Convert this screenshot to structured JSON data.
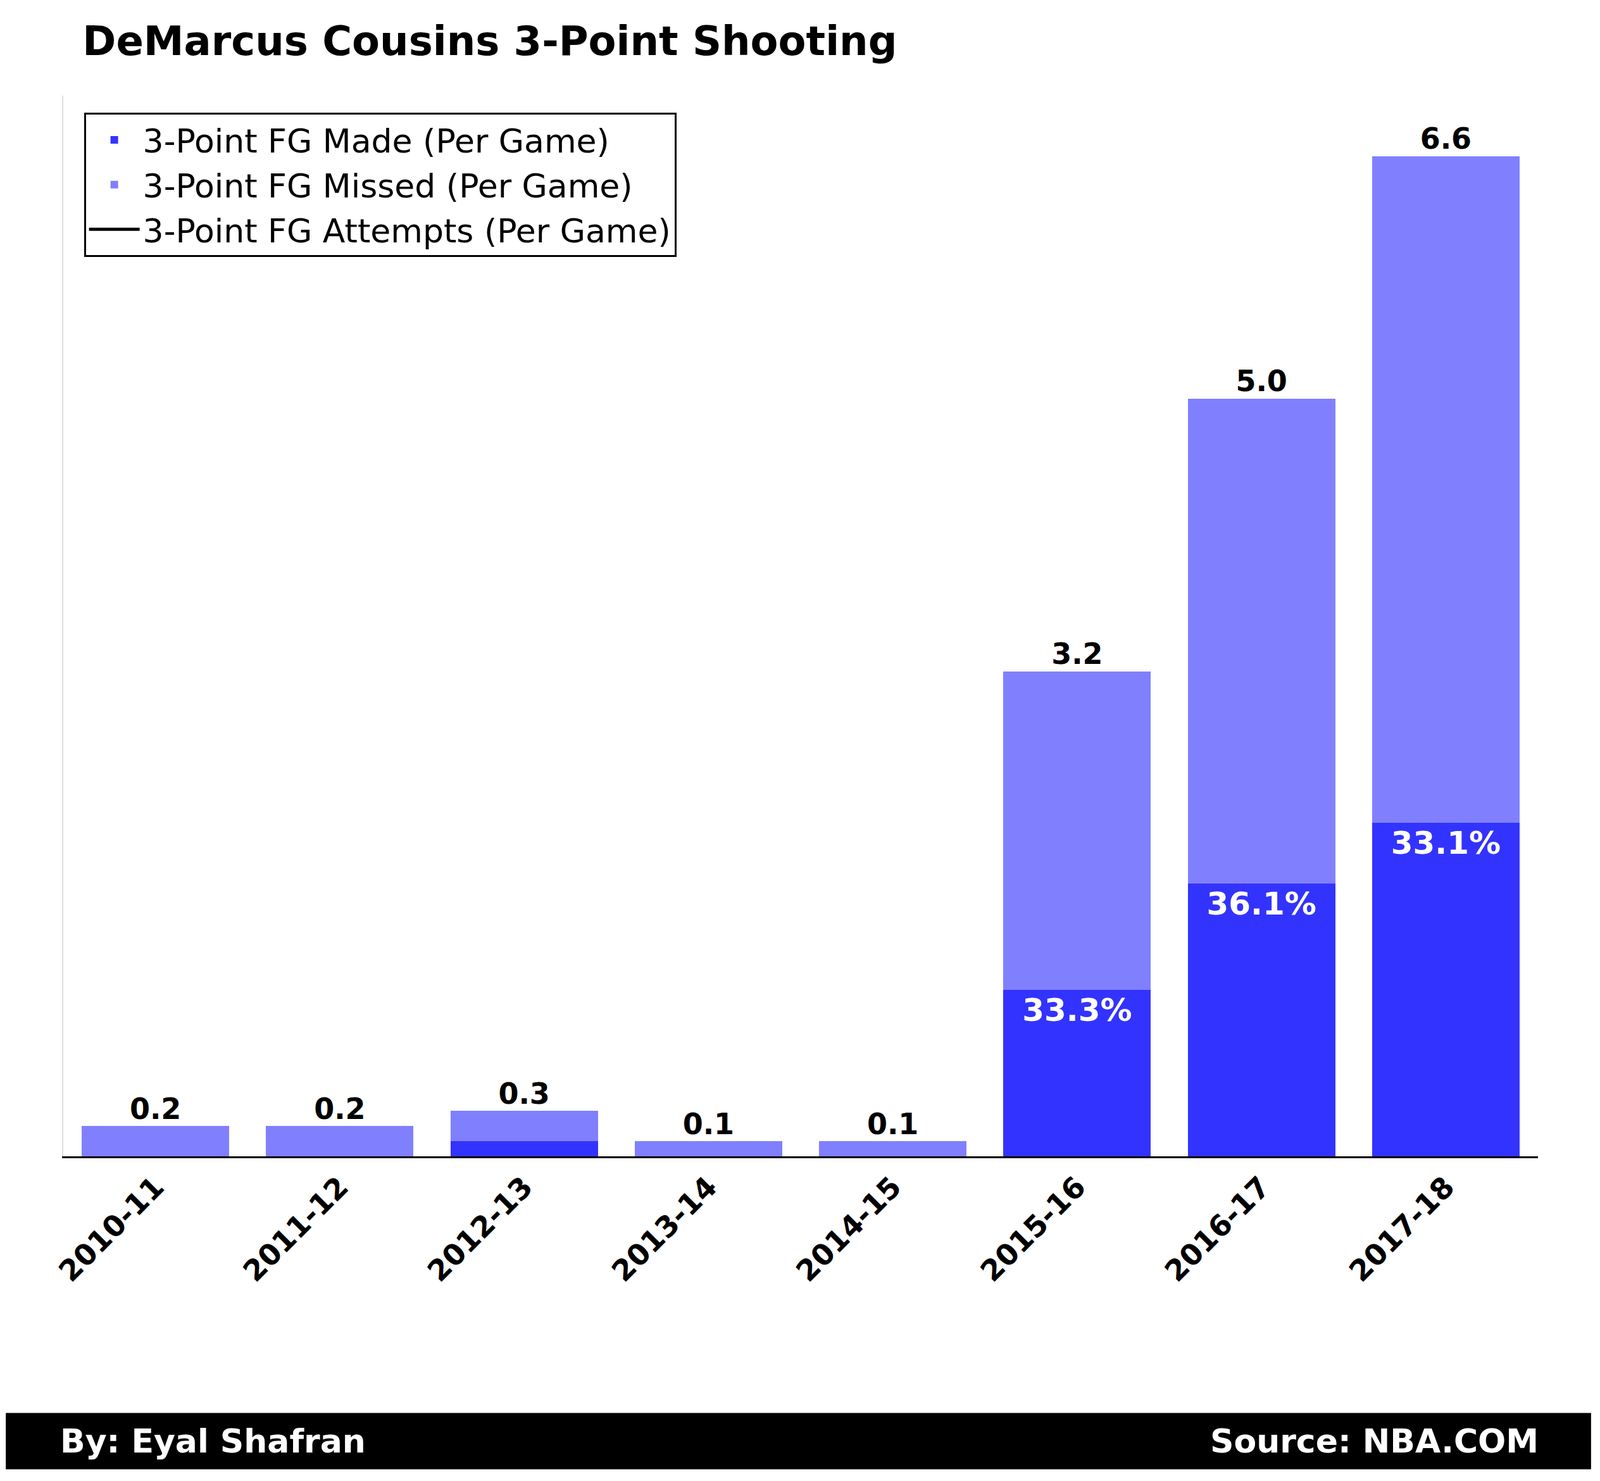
{
  "chart_data": {
    "type": "bar",
    "title": "DeMarcus Cousins 3-Point Shooting",
    "categories": [
      "2010-11",
      "2011-12",
      "2012-13",
      "2013-14",
      "2014-15",
      "2015-16",
      "2016-17",
      "2017-18"
    ],
    "stacked": true,
    "data_labels": true,
    "tick_labels": "x",
    "grid": false,
    "legend": "upper left",
    "ylim": [
      0,
      7.0
    ],
    "yticks": [],
    "series": [
      {
        "name": "3-Point FG Made (Per Game)",
        "color": "#3333ff",
        "type": "bar",
        "values": [
          0,
          0,
          0.1,
          0,
          0,
          1.1,
          1.8,
          2.2
        ],
        "percent_labels": [
          null,
          null,
          null,
          null,
          null,
          "33.3%",
          "36.1%",
          "33.1%"
        ]
      },
      {
        "name": "3-Point FG Missed (Per Game)",
        "color": "#8080ff",
        "type": "bar",
        "values": [
          0.2,
          0.2,
          0.2,
          0.1,
          0.1,
          2.1,
          3.2,
          4.4
        ]
      },
      {
        "name": "3-Point FG Attempts (Per Game)",
        "color": "#000000",
        "type": "label",
        "values": [
          0.2,
          0.2,
          0.3,
          0.1,
          0.1,
          3.2,
          5.0,
          6.6
        ],
        "value_labels": [
          "0.2",
          "0.2",
          "0.3",
          "0.1",
          "0.1",
          "3.2",
          "5.0",
          "6.6"
        ]
      }
    ],
    "byline": "By: Eyal Shafran",
    "source": "Source: NBA.COM"
  }
}
